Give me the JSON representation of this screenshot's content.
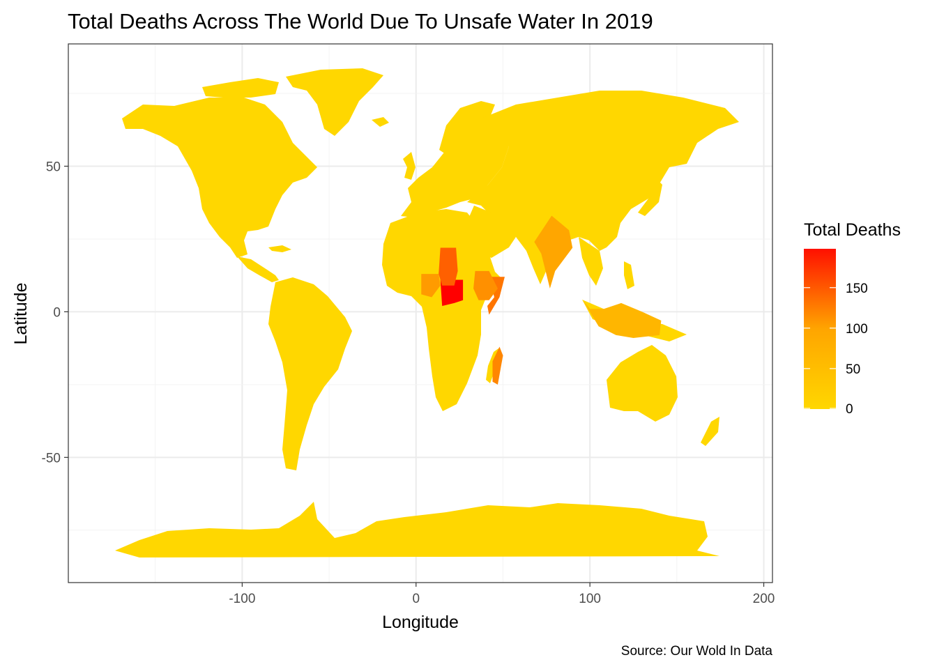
{
  "chart_data": {
    "type": "choropleth-map",
    "title": "Total Deaths Across The World Due To Unsafe Water In 2019",
    "xlabel": "Longitude",
    "ylabel": "Latitude",
    "caption": "Source: Our Wold In Data",
    "xlim": [
      -200,
      205
    ],
    "ylim": [
      -93,
      92
    ],
    "x_ticks": [
      -100,
      0,
      100,
      200
    ],
    "y_ticks": [
      50,
      0,
      -50
    ],
    "x_tick_labels": [
      "-100",
      "0",
      "100",
      "200"
    ],
    "y_tick_labels": [
      "50",
      "0",
      "-50"
    ],
    "grid": true,
    "legend": {
      "title": "Total Deaths",
      "position": "right",
      "range": [
        0,
        198
      ],
      "ticks": [
        150,
        100,
        50,
        0
      ],
      "tick_labels": [
        "150",
        "100",
        "50",
        "0"
      ],
      "colors": {
        "low": "#FFD700",
        "high": "#FF0000"
      }
    },
    "colors": {
      "base_land": "#FFD700",
      "panel_border": "#333333"
    },
    "regions": [
      {
        "name": "Central African Republic",
        "lon": 20.5,
        "lat": 6.5,
        "value": 198
      },
      {
        "name": "Chad",
        "lon": 18.7,
        "lat": 15.4,
        "value": 110
      },
      {
        "name": "Somalia",
        "lon": 46.2,
        "lat": 5.2,
        "value": 90
      },
      {
        "name": "Madagascar",
        "lon": 46.9,
        "lat": -19.0,
        "value": 75
      },
      {
        "name": "Ethiopia",
        "lon": 40.5,
        "lat": 9.1,
        "value": 65
      },
      {
        "name": "Nigeria",
        "lon": 8.7,
        "lat": 9.1,
        "value": 55
      },
      {
        "name": "India",
        "lon": 78.9,
        "lat": 21.0,
        "value": 45
      },
      {
        "name": "Indonesia",
        "lon": 120.0,
        "lat": -2.5,
        "value": 30
      }
    ]
  }
}
